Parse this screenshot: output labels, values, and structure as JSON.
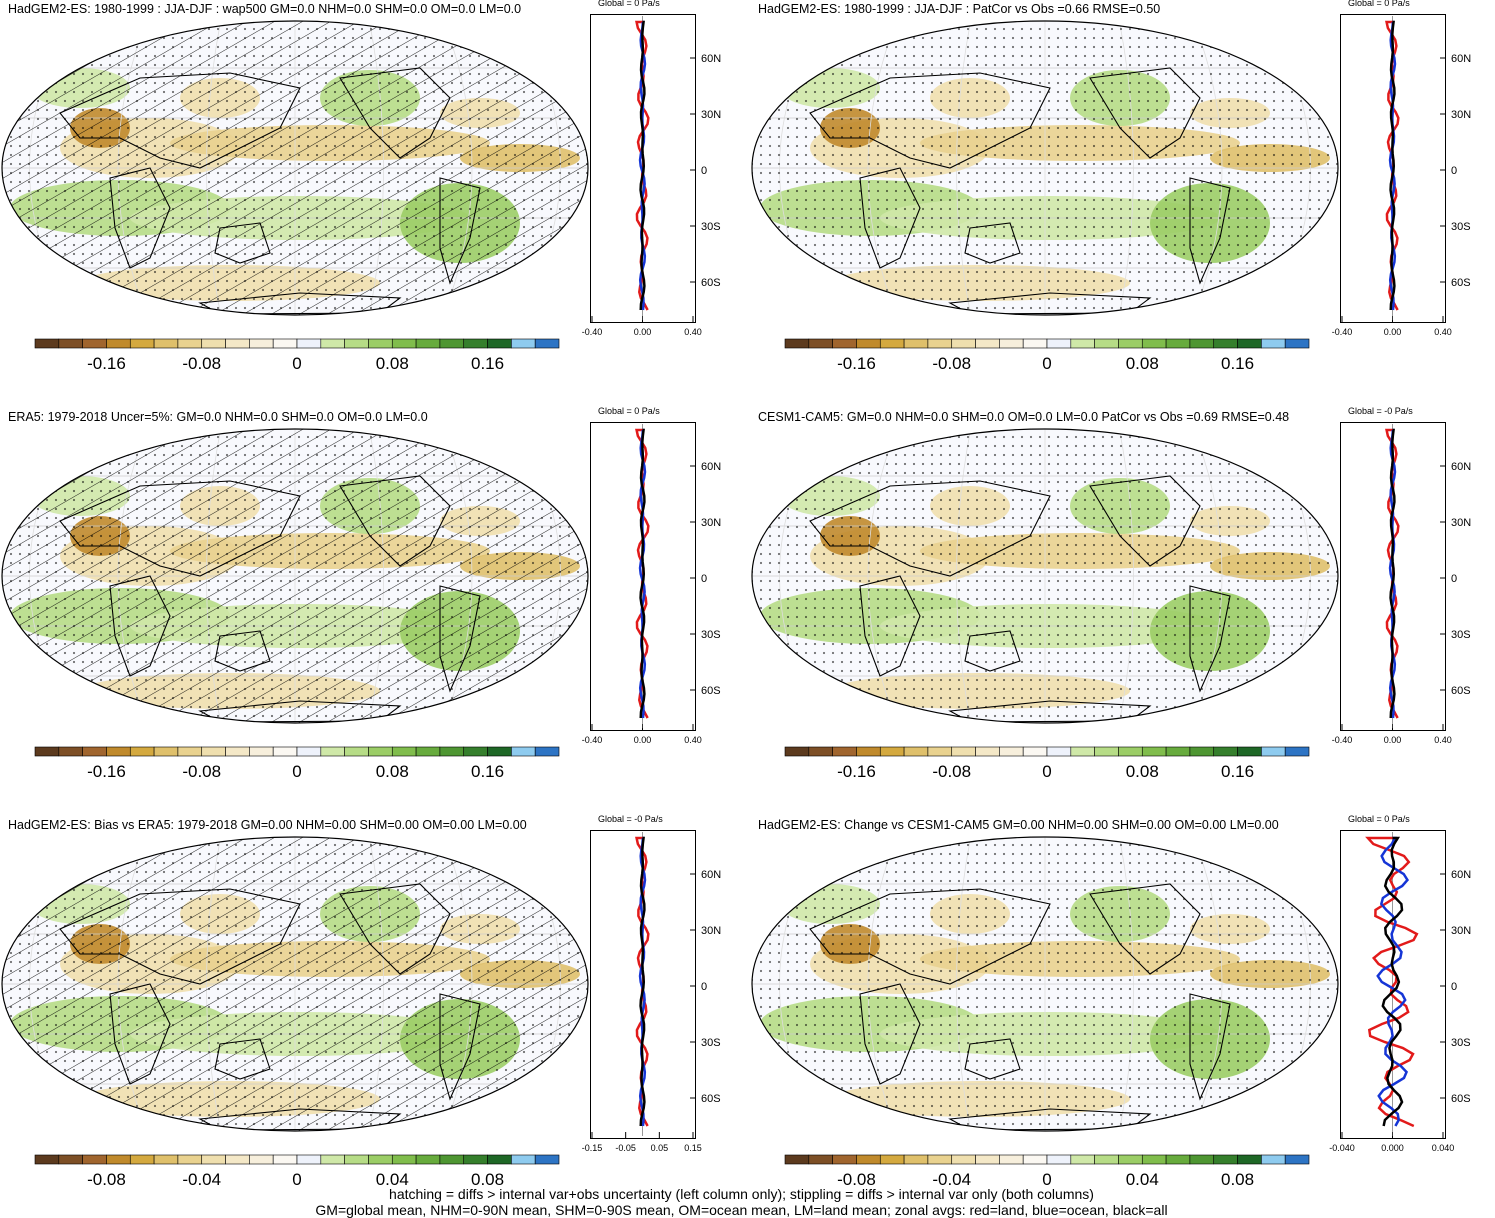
{
  "panels": [
    {
      "title": "HadGEM2-ES: 1980-1999 : JJA-DJF : wap500 GM=0.0 NHM=0.0 SHM=0.0 OM=0.0 LM=0.0",
      "zonal_title": "Global = 0 Pa/s",
      "hatch": true,
      "cbar_labels": [
        "-0.16",
        "-0.08",
        "0",
        "0.08",
        "0.16"
      ],
      "zonal_ticks": [
        "-0.40",
        "0.00",
        "0.40"
      ]
    },
    {
      "title": "HadGEM2-ES: 1980-1999 : JJA-DJF : PatCor vs Obs =0.66 RMSE=0.50",
      "zonal_title": "Global = 0 Pa/s",
      "hatch": false,
      "cbar_labels": [
        "-0.16",
        "-0.08",
        "0",
        "0.08",
        "0.16"
      ],
      "zonal_ticks": [
        "-0.40",
        "0.00",
        "0.40"
      ]
    },
    {
      "title": "ERA5: 1979-2018 Uncer=5%: GM=0.0 NHM=0.0 SHM=0.0 OM=0.0 LM=0.0",
      "zonal_title": "Global = 0 Pa/s",
      "hatch": true,
      "cbar_labels": [
        "-0.16",
        "-0.08",
        "0",
        "0.08",
        "0.16"
      ],
      "zonal_ticks": [
        "-0.40",
        "0.00",
        "0.40"
      ]
    },
    {
      "title": "CESM1-CAM5: GM=0.0 NHM=0.0 SHM=0.0 OM=0.0 LM=0.0 PatCor vs Obs =0.69 RMSE=0.48",
      "zonal_title": "Global = -0 Pa/s",
      "hatch": false,
      "cbar_labels": [
        "-0.16",
        "-0.08",
        "0",
        "0.08",
        "0.16"
      ],
      "zonal_ticks": [
        "-0.40",
        "0.00",
        "0.40"
      ]
    },
    {
      "title": "HadGEM2-ES: Bias vs ERA5: 1979-2018 GM=0.00 NHM=0.00 SHM=0.00 OM=0.00 LM=0.00",
      "zonal_title": "Global = -0 Pa/s",
      "hatch": true,
      "cbar_labels": [
        "-0.08",
        "-0.04",
        "0",
        "0.04",
        "0.08"
      ],
      "zonal_ticks": [
        "-0.15",
        "-0.05",
        "0.05",
        "0.15"
      ]
    },
    {
      "title": "HadGEM2-ES: Change vs CESM1-CAM5 GM=0.00 NHM=0.00 SHM=0.00 OM=0.00 LM=0.00",
      "zonal_title": "Global = 0 Pa/s",
      "hatch": false,
      "cbar_labels": [
        "-0.08",
        "-0.04",
        "0",
        "0.04",
        "0.08"
      ],
      "zonal_ticks": [
        "-0.040",
        "0.000",
        "0.040"
      ]
    }
  ],
  "lat_labels": [
    "60N",
    "30N",
    "0",
    "30S",
    "60S"
  ],
  "colorbar_colors": [
    "#5c3a1e",
    "#7d4f26",
    "#a0652e",
    "#c08a2c",
    "#d4a93f",
    "#dfc06b",
    "#e9d28f",
    "#efdfae",
    "#f4e8c7",
    "#f7efdc",
    "#fbf8f2",
    "#eef2fb",
    "#cfe8a8",
    "#b6dc86",
    "#9bcd66",
    "#80bd4c",
    "#67ab3d",
    "#4e9632",
    "#357f2c",
    "#1e6726",
    "#8ecbef",
    "#2d74c4"
  ],
  "footer": {
    "line1": "hatching = diffs > internal var+obs uncertainty (left column only); stippling = diffs > internal var only (both columns)",
    "line2": "GM=global mean, NHM=0-90N mean, SHM=0-90S mean, OM=ocean mean, LM=land mean; zonal avgs: red=land, blue=ocean, black=all"
  }
}
